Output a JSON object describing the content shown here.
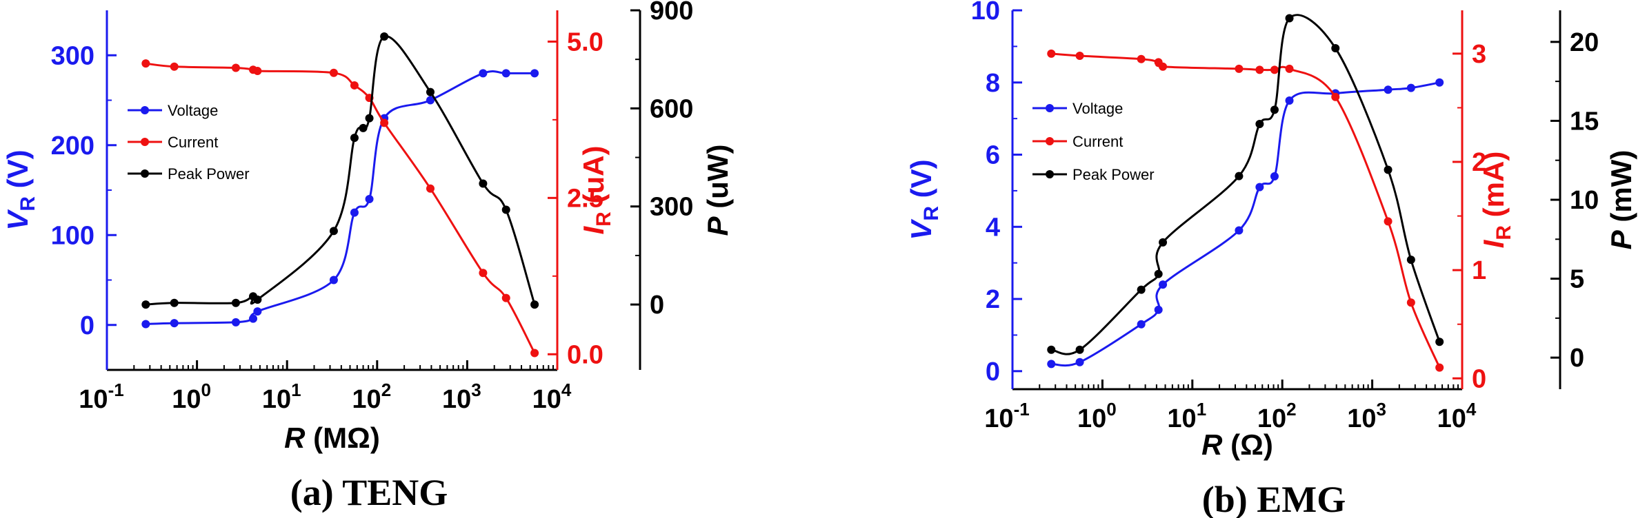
{
  "chart_data": [
    {
      "type": "line",
      "caption": "(a) TENG",
      "x_scale": "log",
      "xlim": [
        0.1,
        10000
      ],
      "xlabel": {
        "var": "R",
        "unit": "(MΩ)"
      },
      "x_ticks": [
        {
          "base": "10",
          "exp": "-1"
        },
        {
          "base": "10",
          "exp": "0"
        },
        {
          "base": "10",
          "exp": "1"
        },
        {
          "base": "10",
          "exp": "2"
        },
        {
          "base": "10",
          "exp": "3"
        },
        {
          "base": "10",
          "exp": "4"
        }
      ],
      "axes": [
        {
          "side": "left",
          "color": "#1a1aee",
          "var": "V",
          "sub": "R",
          "unit": "(V)",
          "lim": [
            -50,
            350
          ],
          "ticks": [
            "0",
            "100",
            "200",
            "300"
          ],
          "tick_values": [
            0,
            100,
            200,
            300
          ]
        },
        {
          "side": "right1",
          "color": "#ee1111",
          "var": "I",
          "sub": "R",
          "unit": "(uA)",
          "lim": [
            -0.25,
            5.5
          ],
          "ticks": [
            "0.0",
            "2.5",
            "5.0"
          ],
          "tick_values": [
            0,
            2.5,
            5.0
          ]
        },
        {
          "side": "right2",
          "color": "#000000",
          "var": "P",
          "sub": "",
          "unit": "(uW)",
          "lim": [
            -200,
            900
          ],
          "ticks": [
            "0",
            "300",
            "600",
            "900"
          ],
          "tick_values": [
            0,
            300,
            600,
            900
          ]
        }
      ],
      "legend": {
        "placement": "upper-left",
        "entries": [
          "Voltage",
          "Current",
          "Peak Power"
        ]
      },
      "series": [
        {
          "name": "Voltage",
          "axis": 0,
          "color": "#1a1aee",
          "x": [
            0.27,
            0.56,
            2.7,
            4.2,
            4.7,
            33,
            56,
            82,
            120,
            390,
            1500,
            2700,
            5600
          ],
          "y": [
            1,
            2,
            3,
            7,
            15,
            50,
            125,
            140,
            230,
            250,
            280,
            280,
            280
          ]
        },
        {
          "name": "Current",
          "axis": 1,
          "color": "#ee1111",
          "x": [
            0.27,
            0.56,
            2.7,
            4.2,
            4.7,
            33,
            56,
            82,
            120,
            390,
            1500,
            2700,
            5600
          ],
          "y": [
            4.65,
            4.6,
            4.58,
            4.55,
            4.53,
            4.5,
            4.3,
            4.1,
            3.7,
            2.65,
            1.3,
            0.9,
            0.02
          ]
        },
        {
          "name": "Peak Power",
          "axis": 2,
          "color": "#000000",
          "x": [
            0.27,
            0.56,
            2.7,
            4.2,
            4.7,
            33,
            56,
            70,
            82,
            120,
            390,
            1500,
            2700,
            5600
          ],
          "y": [
            0,
            5,
            5,
            25,
            15,
            225,
            510,
            540,
            570,
            820,
            650,
            370,
            290,
            0
          ]
        }
      ]
    },
    {
      "type": "line",
      "caption": "(b) EMG",
      "x_scale": "log",
      "xlim": [
        0.1,
        10000
      ],
      "xlabel": {
        "var": "R",
        "unit": "(Ω)"
      },
      "x_ticks": [
        {
          "base": "10",
          "exp": "-1"
        },
        {
          "base": "10",
          "exp": "0"
        },
        {
          "base": "10",
          "exp": "1"
        },
        {
          "base": "10",
          "exp": "2"
        },
        {
          "base": "10",
          "exp": "3"
        },
        {
          "base": "10",
          "exp": "4"
        }
      ],
      "axes": [
        {
          "side": "left",
          "color": "#1a1aee",
          "var": "V",
          "sub": "R",
          "unit": "(V)",
          "lim": [
            -0.5,
            10
          ],
          "ticks": [
            "0",
            "2",
            "4",
            "6",
            "8",
            "10"
          ],
          "tick_values": [
            0,
            2,
            4,
            6,
            8,
            10
          ]
        },
        {
          "side": "right1",
          "color": "#ee1111",
          "var": "I",
          "sub": "R",
          "unit": "(mA)",
          "lim": [
            -0.1,
            3.4
          ],
          "ticks": [
            "0",
            "1",
            "2",
            "3"
          ],
          "tick_values": [
            0,
            1,
            2,
            3
          ]
        },
        {
          "side": "right2",
          "color": "#000000",
          "var": "P",
          "sub": "",
          "unit": "(mW)",
          "lim": [
            -2,
            22
          ],
          "ticks": [
            "0",
            "5",
            "10",
            "15",
            "20"
          ],
          "tick_values": [
            0,
            5,
            10,
            15,
            20
          ]
        }
      ],
      "legend": {
        "placement": "upper-left",
        "entries": [
          "Voltage",
          "Current",
          "Peak Power"
        ]
      },
      "series": [
        {
          "name": "Voltage",
          "axis": 0,
          "color": "#1a1aee",
          "x": [
            0.27,
            0.56,
            2.7,
            4.2,
            4.7,
            33,
            56,
            82,
            120,
            390,
            1500,
            2700,
            5600
          ],
          "y": [
            0.2,
            0.25,
            1.3,
            1.7,
            2.4,
            3.9,
            5.1,
            5.4,
            7.5,
            7.7,
            7.8,
            7.85,
            8.0
          ]
        },
        {
          "name": "Current",
          "axis": 1,
          "color": "#ee1111",
          "x": [
            0.27,
            0.56,
            2.7,
            4.2,
            4.7,
            33,
            56,
            82,
            120,
            390,
            1500,
            2700,
            5600
          ],
          "y": [
            3.0,
            2.98,
            2.95,
            2.92,
            2.88,
            2.86,
            2.85,
            2.85,
            2.86,
            2.6,
            1.45,
            0.7,
            0.1
          ]
        },
        {
          "name": "Peak Power",
          "axis": 2,
          "color": "#000000",
          "x": [
            0.27,
            0.56,
            2.7,
            4.2,
            4.7,
            33,
            56,
            82,
            120,
            390,
            1500,
            2700,
            5600
          ],
          "y": [
            0.5,
            0.5,
            4.3,
            5.3,
            7.3,
            11.5,
            14.8,
            15.7,
            21.5,
            19.6,
            11.9,
            6.2,
            1.0
          ]
        }
      ]
    }
  ]
}
